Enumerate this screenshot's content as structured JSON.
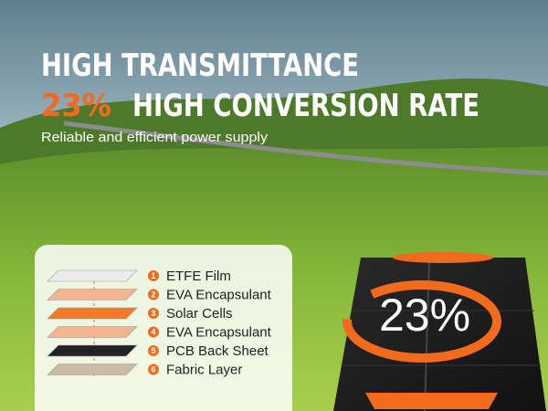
{
  "headline": {
    "line1": "HIGH TRANSMITTANCE",
    "rate": "23%",
    "line2": "HIGH CONVERSION RATE"
  },
  "subtitle": "Reliable and efficient power supply",
  "layers": [
    {
      "number": "1",
      "label": "ETFE Film"
    },
    {
      "number": "2",
      "label": "EVA Encapsulant"
    },
    {
      "number": "3",
      "label": "Solar Cells"
    },
    {
      "number": "4",
      "label": "EVA Encapsulant"
    },
    {
      "number": "5",
      "label": "PCB Back Sheet"
    },
    {
      "number": "6",
      "label": "Fabric Layer"
    }
  ],
  "panel_badge": "23%"
}
